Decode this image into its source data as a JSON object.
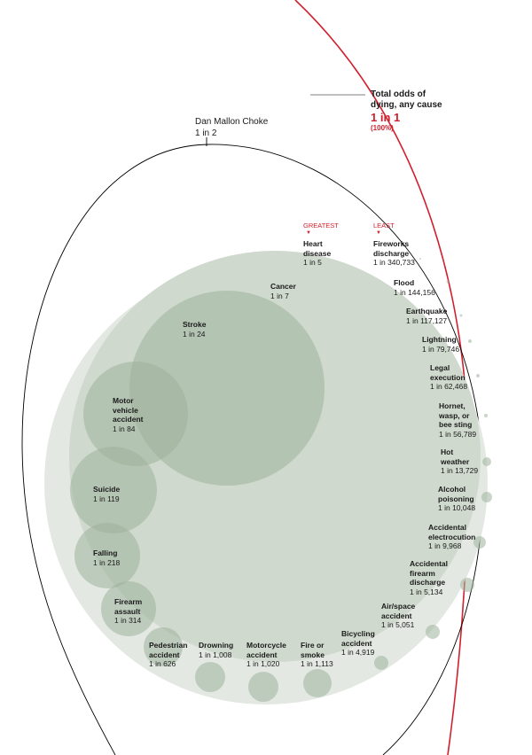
{
  "total": {
    "title_line1": "Total odds of",
    "title_line2": "dying, any cause",
    "odds": "1 in 1",
    "percent": "(100%)"
  },
  "dan": {
    "name": "Dan Mallon Choke",
    "odds": "1 in 2"
  },
  "markers": {
    "greatest": "GREATEST",
    "least": "LEAST",
    "arrow": "▼"
  },
  "colors": {
    "total_ring": "#d0202e",
    "accent": "#d0202e",
    "bubble": "#9fb29c",
    "outer_bubble": "#e3e8e2"
  },
  "causes": [
    {
      "name": [
        "Heart",
        "disease"
      ],
      "odds": "1 in 5"
    },
    {
      "name": [
        "Cancer"
      ],
      "odds": "1 in 7"
    },
    {
      "name": [
        "Stroke"
      ],
      "odds": "1 in 24"
    },
    {
      "name": [
        "Motor",
        "vehicle",
        "accident"
      ],
      "odds": "1 in 84"
    },
    {
      "name": [
        "Suicide"
      ],
      "odds": "1 in 119"
    },
    {
      "name": [
        "Falling"
      ],
      "odds": "1 in 218"
    },
    {
      "name": [
        "Firearm",
        "assault"
      ],
      "odds": "1 in 314"
    },
    {
      "name": [
        "Pedestrian",
        "accident"
      ],
      "odds": "1 in 626"
    },
    {
      "name": [
        "Drowning"
      ],
      "odds": "1 in 1,008"
    },
    {
      "name": [
        "Motorcycle",
        "accident"
      ],
      "odds": "1 in 1,020"
    },
    {
      "name": [
        "Fire or",
        "smoke"
      ],
      "odds": "1 in 1,113"
    },
    {
      "name": [
        "Bicycling",
        "accident"
      ],
      "odds": "1 in 4,919"
    },
    {
      "name": [
        "Air/space",
        "accident"
      ],
      "odds": "1 in 5,051"
    },
    {
      "name": [
        "Accidental",
        "firearm",
        "discharge"
      ],
      "odds": "1 in 5,134"
    },
    {
      "name": [
        "Accidental",
        "electrocution"
      ],
      "odds": "1 in 9,968"
    },
    {
      "name": [
        "Alcohol",
        "poisoning"
      ],
      "odds": "1 in 10,048"
    },
    {
      "name": [
        "Hot",
        "weather"
      ],
      "odds": "1 in 13,729"
    },
    {
      "name": [
        "Hornet,",
        "wasp, or",
        "bee sting"
      ],
      "odds": "1 in 56,789"
    },
    {
      "name": [
        "Legal",
        "execution"
      ],
      "odds": "1 in 62,468"
    },
    {
      "name": [
        "Lightning"
      ],
      "odds": "1 in 79,746"
    },
    {
      "name": [
        "Earthquake"
      ],
      "odds": "1 in 117,127"
    },
    {
      "name": [
        "Flood"
      ],
      "odds": "1 in 144,156"
    },
    {
      "name": [
        "Fireworks",
        "discharge"
      ],
      "odds": "1 in 340,733"
    }
  ]
}
